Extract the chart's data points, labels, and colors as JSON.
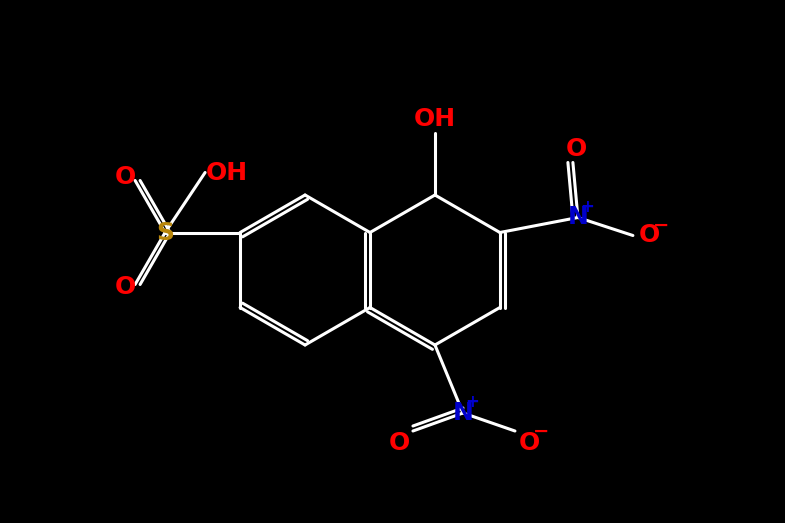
{
  "background_color": "#000000",
  "colors": {
    "O": "#ff0000",
    "N": "#0000cc",
    "S": "#b8860b",
    "bond": "#ffffff"
  },
  "figsize": [
    7.85,
    5.23
  ],
  "dpi": 100,
  "bond_lw": 2.2,
  "font_size": 18
}
